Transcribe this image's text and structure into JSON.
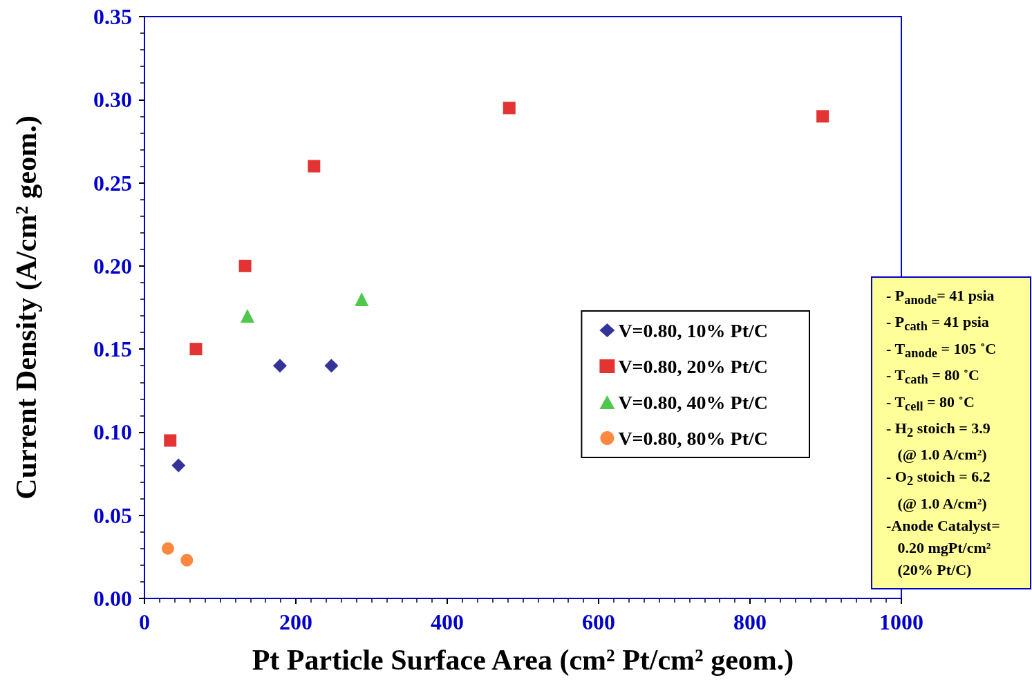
{
  "chart_data": {
    "type": "scatter",
    "xlabel": "Pt Particle Surface Area (cm² Pt/cm² geom.)",
    "ylabel": "Current Density (A/cm² geom.)",
    "xlim": [
      0,
      1000
    ],
    "xticks": [
      0,
      200,
      400,
      600,
      800,
      1000
    ],
    "ylim": [
      0,
      0.35
    ],
    "yticks": [
      {
        "value": 0,
        "label": "0.00"
      },
      {
        "value": 0.05,
        "label": "0.05"
      },
      {
        "value": 0.1,
        "label": "0.10"
      },
      {
        "value": 0.15,
        "label": "0.15"
      },
      {
        "value": 0.2,
        "label": "0.20"
      },
      {
        "value": 0.25,
        "label": "0.25"
      },
      {
        "value": 0.3,
        "label": "0.30"
      },
      {
        "value": 0.35,
        "label": "0.35"
      }
    ],
    "grid": false,
    "legend": "right",
    "series": [
      {
        "name": "V=0.80, 10% Pt/C",
        "color": "#000080",
        "marker": "diamond",
        "x": [
          45,
          179,
          247
        ],
        "values": [
          0.08,
          0.14,
          0.14
        ]
      },
      {
        "name": "V=0.80, 20% Pt/C",
        "color": "#dd0000",
        "marker": "square",
        "x": [
          34,
          68,
          133,
          224,
          482,
          896
        ],
        "values": [
          0.095,
          0.15,
          0.2,
          0.26,
          0.295,
          0.29
        ]
      },
      {
        "name": "V=0.80, 40% Pt/C",
        "color": "#22bb22",
        "marker": "triangle",
        "x": [
          136,
          287
        ],
        "values": [
          0.17,
          0.18
        ]
      },
      {
        "name": "V=0.80, 80% Pt/C",
        "color": "#ff6a10",
        "marker": "circle",
        "x": [
          31,
          56
        ],
        "values": [
          0.03,
          0.023
        ]
      }
    ],
    "annotations": [
      "- P$_{anode}$= 41 psia",
      "- P$_{cath}$ = 41 psia",
      "- T$_{anode}$ = 105 ˚C",
      "- T$_{cath}$ = 80 ˚C",
      "- T$_{cell}$ = 80 ˚C",
      "- H$_{2}$ stoich = 3.9",
      "   (@ 1.0 A/cm²)",
      "- O$_{2}$ stoich = 6.2",
      "   (@ 1.0 A/cm²)",
      "-Anode Catalyst=",
      "   0.20 mgPt/cm²",
      "   (20% Pt/C)"
    ]
  }
}
